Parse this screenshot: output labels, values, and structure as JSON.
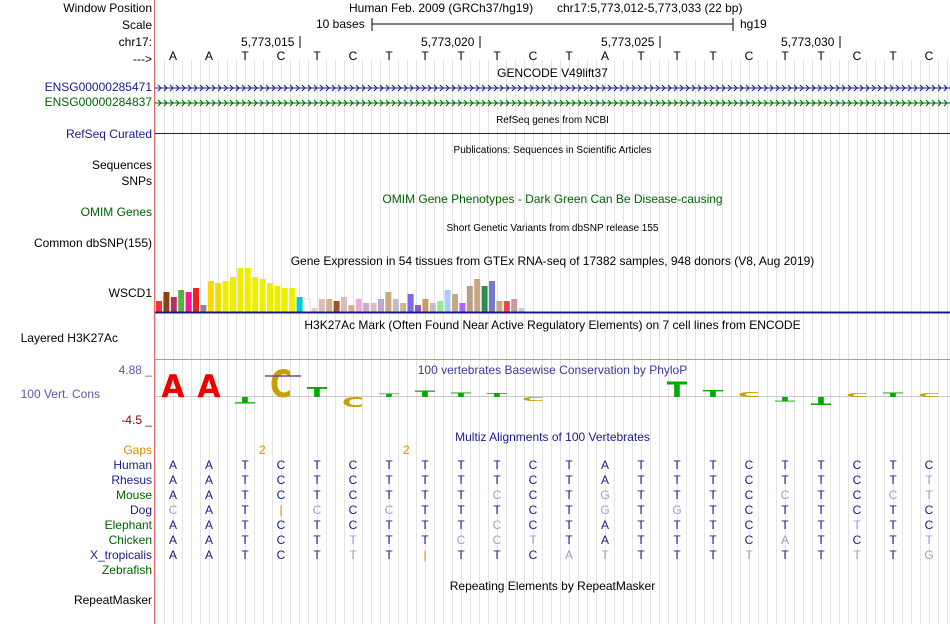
{
  "colors": {
    "nav": "#1a1a8c",
    "green": "#006400",
    "gaps": "#d98c00",
    "scaleLine": "#000000",
    "consTop": "#5a5aa8",
    "consBot": "#8b0000",
    "sepLine": "#1a1a8c",
    "gridLine": "#cccccc"
  },
  "labels": {
    "window_position": "Window Position",
    "scale": "Scale",
    "chr": "chr17:",
    "arrows": "--->",
    "ensg1": "ENSG00000285471",
    "ensg2": "ENSG00000284837",
    "refseq": "RefSeq Curated",
    "sequences": "Sequences",
    "snps": "SNPs",
    "omim": "OMIM Genes",
    "common_snp": "Common dbSNP(155)",
    "wscd1": "WSCD1",
    "layered": "Layered H3K27Ac",
    "cons_top": "4.88 _",
    "cons": "100 Vert. Cons",
    "cons_bot": "-4.5 _",
    "gaps": "Gaps",
    "species": [
      "Human",
      "Rhesus",
      "Mouse",
      "Dog",
      "Elephant",
      "Chicken",
      "X_tropicalis",
      "Zebrafish"
    ],
    "repeatmasker": "RepeatMasker"
  },
  "ruler": {
    "assembly": "Human Feb. 2009 (GRCh37/hg19)",
    "position": "chr17:5,773,012-5,773,033 (22 bp)",
    "scale_text": "10 bases",
    "db": "hg19",
    "coords": [
      "5,773,015",
      "5,773,020",
      "5,773,025",
      "5,773,030"
    ],
    "bases": [
      "A",
      "A",
      "T",
      "C",
      "T",
      "C",
      "T",
      "T",
      "T",
      "T",
      "C",
      "T",
      "A",
      "T",
      "T",
      "T",
      "C",
      "T",
      "T",
      "C",
      "T",
      "C"
    ]
  },
  "tracks": {
    "gencode": "GENCODE V49lift37",
    "refseq_title": "RefSeq genes from NCBI",
    "publications": "Publications: Sequences in Scientific Articles",
    "omim_title": "OMIM Gene Phenotypes - Dark Green Can Be Disease-causing",
    "snp_title": "Short Genetic Variants from dbSNP release 155",
    "gtex_title": "Gene Expression in 54 tissues from GTEx RNA-seq of 17382 samples, 948 donors (V8, Aug 2019)",
    "h3k27ac_title": "H3K27Ac Mark (Often Found Near Active Regulatory Elements) on 7 cell lines from ENCODE",
    "phylop_title": "100 vertebrates Basewise Conservation by PhyloP",
    "multiz_title": "Multiz Alignments of 100 Vertebrates",
    "repeat_title": "Repeating Elements by RepeatMasker",
    "gap_marks": [
      "2",
      "2"
    ]
  },
  "gtex_values": [
    0.25,
    0.45,
    0.35,
    0.5,
    0.45,
    0.55,
    0.15,
    0.7,
    0.65,
    0.7,
    0.8,
    1.0,
    1.0,
    0.8,
    0.75,
    0.65,
    0.6,
    0.55,
    0.55,
    0.35,
    0.3,
    0.1,
    0.3,
    0.3,
    0.25,
    0.35,
    0.15,
    0.3,
    0.2,
    0.2,
    0.3,
    0.45,
    0.3,
    0.2,
    0.4,
    0.15,
    0.3,
    0.2,
    0.25,
    0.5,
    0.4,
    0.2,
    0.6,
    0.75,
    0.6,
    0.7,
    0.25,
    0.25,
    0.3,
    0.1
  ],
  "gtex_colors": [
    "#ff3030",
    "#8b4513",
    "#b0306a",
    "#5aaf3f",
    "#ff1493",
    "#ee2020",
    "#888888",
    "#ffd700",
    "#eedd00",
    "#eeee00",
    "#eeee00",
    "#eeee00",
    "#eeee00",
    "#eeee00",
    "#eeee00",
    "#eeee00",
    "#eeee00",
    "#eeee00",
    "#eeee00",
    "#00cccc",
    "#ffffff",
    "#eecccc",
    "#ddbbbb",
    "#d2b48c",
    "#a0522d",
    "#ddbbbb",
    "#d2b48c",
    "#eeaadd",
    "#ccaacc",
    "#ddbbbb",
    "#bbaacc",
    "#c8a882",
    "#c0c0c0",
    "#d2b48c",
    "#7b68ee",
    "#9b59b6",
    "#cc9966",
    "#c0c0c0",
    "#90ee90",
    "#aaccff",
    "#c8a882",
    "#aa66ff",
    "#b8a088",
    "#c8a882",
    "#2e8b57",
    "#7777cc",
    "#c8a882",
    "#ee4444",
    "#cc9999",
    "#cccccc"
  ],
  "phylop": {
    "bases": [
      "A",
      "A",
      "T",
      "C",
      "T",
      "C",
      "T",
      "T",
      "T",
      "T",
      "C",
      "T",
      "A",
      "T",
      "T",
      "T",
      "C",
      "T",
      "T",
      "C",
      "T",
      "C"
    ],
    "values": [
      3.5,
      3.5,
      -1,
      4.2,
      1.5,
      -1.5,
      0.4,
      1.0,
      0.7,
      0.6,
      -0.6,
      0,
      0,
      0,
      2.4,
      1.1,
      0.8,
      -0.7,
      -1.2,
      0.6,
      0.7,
      0.6
    ]
  },
  "alignments": [
    [
      "A",
      "A",
      "T",
      "C",
      "T",
      "C",
      "T",
      "T",
      "T",
      "T",
      "C",
      "T",
      "A",
      "T",
      "T",
      "T",
      "C",
      "T",
      "T",
      "C",
      "T",
      "C"
    ],
    [
      "A",
      "A",
      "T",
      "C",
      "T",
      "C",
      "T",
      "T",
      "T",
      "T",
      "C",
      "T",
      "A",
      "T",
      "T",
      "T",
      "C",
      "T",
      "T",
      "C",
      "T",
      "T"
    ],
    [
      "A",
      "A",
      "T",
      "C",
      "T",
      "C",
      "T",
      "T",
      "T",
      "C",
      "C",
      "T",
      "G",
      "T",
      "T",
      "T",
      "C",
      "C",
      "T",
      "C",
      "C",
      "T"
    ],
    [
      "C",
      "A",
      "T",
      "|",
      "C",
      "C",
      "C",
      "T",
      "T",
      "T",
      "C",
      "T",
      "G",
      "T",
      "G",
      "T",
      "C",
      "T",
      "T",
      "C",
      "T",
      "C"
    ],
    [
      "A",
      "A",
      "T",
      "C",
      "T",
      "C",
      "T",
      "T",
      "T",
      "C",
      "C",
      "T",
      "A",
      "T",
      "T",
      "T",
      "C",
      "T",
      "T",
      "T",
      "T",
      "C"
    ],
    [
      "A",
      "A",
      "T",
      "C",
      "T",
      "T",
      "T",
      "T",
      "C",
      "C",
      "T",
      "T",
      "A",
      "T",
      "T",
      "T",
      "C",
      "A",
      "T",
      "C",
      "T",
      "T"
    ],
    [
      "A",
      "A",
      "T",
      "C",
      "T",
      "T",
      "T",
      "|",
      "T",
      "T",
      "C",
      "A",
      "T",
      "T",
      "T",
      "T",
      "T",
      "T",
      "T",
      "T",
      "T",
      "G"
    ],
    [
      "",
      "",
      "",
      "",
      "",
      "",
      "",
      "",
      "",
      "",
      "",
      "",
      "",
      "",
      "",
      "",
      "",
      "",
      "",
      "",
      "",
      ""
    ]
  ]
}
